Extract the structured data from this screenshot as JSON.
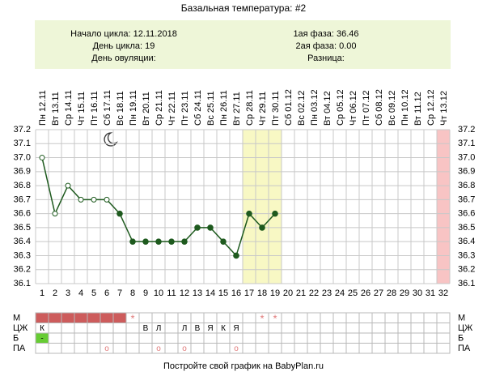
{
  "chart_data": {
    "type": "line",
    "title": "Базальная температура: #2",
    "info_left": [
      {
        "label": "Начало цикла:",
        "value": "12.11.2018"
      },
      {
        "label": "День цикла:",
        "value": "19"
      },
      {
        "label": "День овуляции:",
        "value": ""
      }
    ],
    "info_right": [
      {
        "label": "1ая фаза:",
        "value": "36.46"
      },
      {
        "label": "2ая фаза:",
        "value": "0.00"
      },
      {
        "label": "Разница:",
        "value": ""
      }
    ],
    "categories": [
      "Пн 12.11",
      "Вт 13.11",
      "Ср 14.11",
      "Чт 15.11",
      "Пт 16.11",
      "Сб 17.11",
      "Вс 18.11",
      "Пн 19.11",
      "Вт 20.11",
      "Ср 21.11",
      "Чт 22.11",
      "Пт 23.11",
      "Сб 24.11",
      "Вс 25.11",
      "Пн 26.11",
      "Вт 27.11",
      "Ср 28.11",
      "Чт 29.11",
      "Пт 30.11",
      "Сб 01.12",
      "Вс 02.12",
      "Пн 03.12",
      "Вт 04.12",
      "Ср 05.12",
      "Чт 06.12",
      "Пт 07.12",
      "Сб 08.12",
      "Вс 09.12",
      "Пн 10.12",
      "Вт 11.12",
      "Ср 12.12",
      "Чт 13.12"
    ],
    "days": [
      1,
      2,
      3,
      4,
      5,
      6,
      7,
      8,
      9,
      10,
      11,
      12,
      13,
      14,
      15,
      16,
      17,
      18,
      19,
      20,
      21,
      22,
      23,
      24,
      25,
      26,
      27,
      28,
      29,
      30,
      31,
      32
    ],
    "values": [
      37.0,
      36.6,
      36.8,
      36.7,
      36.7,
      36.7,
      36.6,
      36.4,
      36.4,
      36.4,
      36.4,
      36.4,
      36.5,
      36.5,
      36.4,
      36.3,
      36.6,
      36.5,
      36.6,
      null,
      null,
      null,
      null,
      null,
      null,
      null,
      null,
      null,
      null,
      null,
      null,
      null
    ],
    "markers": [
      "open",
      "open",
      "open",
      "open",
      "open",
      "open",
      "filled",
      "filled",
      "filled",
      "filled",
      "filled",
      "filled",
      "filled",
      "filled",
      "filled",
      "filled",
      "filled",
      "filled",
      "filled",
      null,
      null,
      null,
      null,
      null,
      null,
      null,
      null,
      null,
      null,
      null,
      null,
      null
    ],
    "color": "#1e5a1e",
    "ylim": [
      36.1,
      37.2
    ],
    "yticks": [
      37.2,
      37.1,
      {
        "value": 37,
        "label": "37.0"
      },
      36.9,
      36.8,
      36.7,
      36.6,
      36.5,
      36.4,
      36.3,
      36.2,
      36.1
    ],
    "grid": true,
    "shaded_days": [
      {
        "from": 17,
        "to": 19,
        "color": "#f8f8c4"
      },
      {
        "from": 32,
        "to": 32,
        "color": "#f8c4c4"
      }
    ],
    "rows": [
      {
        "label": "М",
        "color": "#e07a7a",
        "fill": {
          "days": [
            1,
            2,
            3,
            4,
            5,
            6,
            7
          ],
          "color": "#cd5c5c"
        },
        "cells": [
          null,
          null,
          null,
          null,
          null,
          null,
          null,
          "*",
          null,
          null,
          null,
          null,
          null,
          null,
          null,
          null,
          null,
          "*",
          "*",
          null,
          null,
          null,
          null,
          null,
          null,
          null,
          null,
          null,
          null,
          null,
          null,
          null
        ]
      },
      {
        "label": "ЦЖ",
        "color": "#000000",
        "cells": [
          "К",
          null,
          null,
          null,
          null,
          null,
          null,
          null,
          "В",
          "Л",
          null,
          "Л",
          "В",
          "Я",
          "К",
          "Я",
          null,
          null,
          null,
          null,
          null,
          null,
          null,
          null,
          null,
          null,
          null,
          null,
          null,
          null,
          null,
          null
        ]
      },
      {
        "label": "Б",
        "color": "#000000",
        "fill": {
          "days": [
            1
          ],
          "color": "#66cc33"
        },
        "cells": [
          "-",
          null,
          null,
          null,
          null,
          null,
          null,
          null,
          null,
          null,
          null,
          null,
          null,
          null,
          null,
          null,
          null,
          null,
          null,
          null,
          null,
          null,
          null,
          null,
          null,
          null,
          null,
          null,
          null,
          null,
          null,
          null
        ]
      },
      {
        "label": "ПА",
        "color": "#e07a7a",
        "cells": [
          null,
          null,
          null,
          null,
          null,
          "o",
          null,
          null,
          null,
          "o",
          null,
          "o",
          null,
          null,
          null,
          "o",
          null,
          null,
          null,
          null,
          null,
          null,
          null,
          null,
          null,
          null,
          null,
          null,
          null,
          null,
          null,
          null
        ]
      }
    ],
    "footer": "Постройте свой график на BabyPlan.ru"
  }
}
